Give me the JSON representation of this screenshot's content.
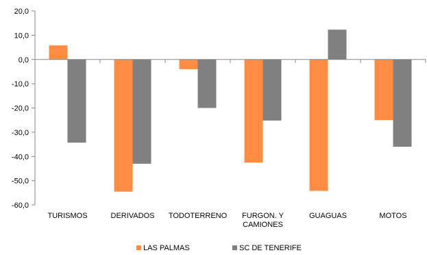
{
  "chart_data": {
    "type": "bar",
    "categories": [
      [
        "TURISMOS"
      ],
      [
        "DERIVADOS"
      ],
      [
        "TODOTERRENO"
      ],
      [
        "FURGON. Y",
        "CAMIONES"
      ],
      [
        "GUAGUAS"
      ],
      [
        "MOTOS"
      ]
    ],
    "series": [
      {
        "name": "LAS PALMAS",
        "color": "#FF8C42",
        "values": [
          5.8,
          -54.5,
          -4.0,
          -42.5,
          -54.2,
          -25.0
        ]
      },
      {
        "name": "SC DE TENERIFE",
        "color": "#808080",
        "values": [
          -34.3,
          -43.0,
          -20.0,
          -25.2,
          12.3,
          -36.0
        ]
      }
    ],
    "y_ticks": [
      "20,0",
      "10,0",
      "0,0",
      "-10,0",
      "-20,0",
      "-30,0",
      "-40,0",
      "-50,0",
      "-60,0"
    ],
    "ylim": [
      -60,
      20
    ],
    "grid": false,
    "legend_position": "bottom",
    "title": "",
    "xlabel": "",
    "ylabel": ""
  }
}
